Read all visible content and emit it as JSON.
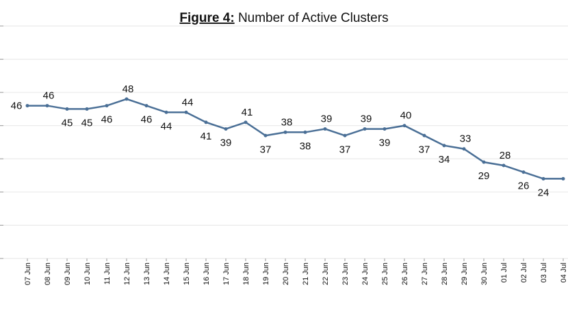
{
  "chart_data": {
    "type": "line",
    "title": {
      "label": "Figure 4:",
      "text": "Number of Active Clusters"
    },
    "categories": [
      "07 Jun",
      "08 Jun",
      "09 Jun",
      "10 Jun",
      "11 Jun",
      "12 Jun",
      "13 Jun",
      "14 Jun",
      "15 Jun",
      "16 Jun",
      "17 Jun",
      "18 Jun",
      "19 Jun",
      "20 Jun",
      "21 Jun",
      "22 Jun",
      "23 Jun",
      "24 Jun",
      "25 Jun",
      "26 Jun",
      "27 Jun",
      "28 Jun",
      "29 Jun",
      "30 Jun",
      "01 Jul",
      "02 Jul",
      "03 Jul",
      "04 Jul"
    ],
    "series": [
      {
        "name": "Active Clusters",
        "color": "#4a6f96",
        "values": [
          46,
          46,
          45,
          45,
          46,
          48,
          46,
          44,
          44,
          41,
          39,
          41,
          37,
          38,
          38,
          39,
          37,
          39,
          39,
          40,
          37,
          34,
          33,
          29,
          28,
          26,
          24,
          24
        ],
        "value_labels": [
          "46",
          "46",
          "45",
          "45",
          "46",
          "48",
          "46",
          "44",
          "44",
          "41",
          "39",
          "41",
          "37",
          "38",
          "38",
          "39",
          "37",
          "39",
          "39",
          "40",
          "37",
          "34",
          "33",
          "29",
          "28",
          "26",
          "24",
          null
        ]
      }
    ],
    "ylim": [
      0,
      70
    ],
    "yticks": [
      0,
      10,
      20,
      30,
      40,
      50,
      60,
      70
    ],
    "grid": true
  }
}
